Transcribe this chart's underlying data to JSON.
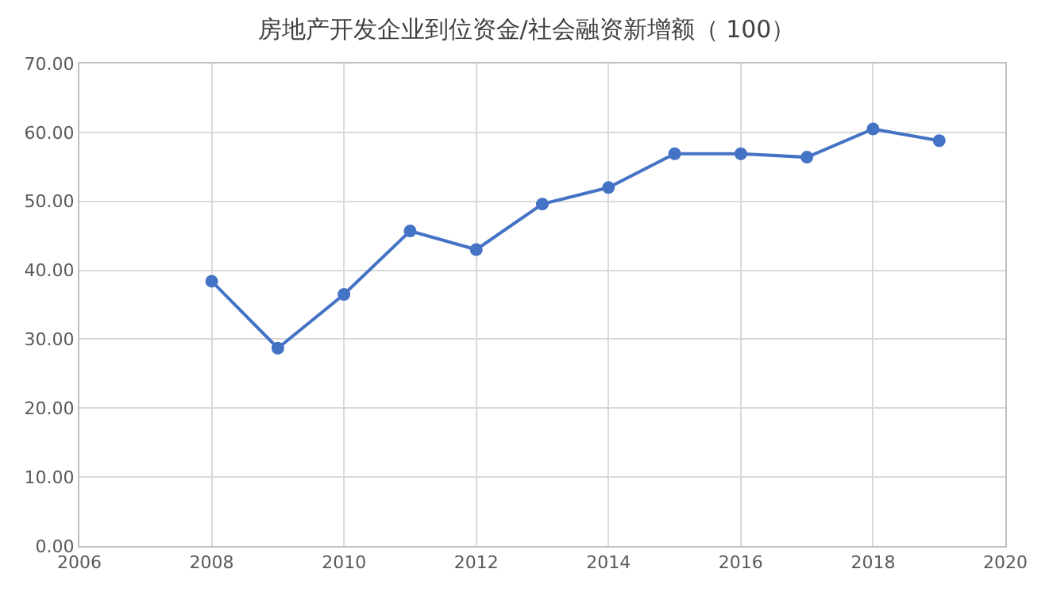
{
  "chart_data": {
    "type": "line",
    "title": "房地产开发企业到位资金/社会融资新增额（ 100）",
    "x": [
      2008,
      2009,
      2010,
      2011,
      2012,
      2013,
      2014,
      2015,
      2016,
      2017,
      2018,
      2019
    ],
    "series": [
      {
        "color": "#4472c4",
        "values": [
          38.4,
          28.7,
          36.5,
          45.7,
          43.0,
          49.6,
          52.0,
          56.9,
          56.9,
          56.4,
          60.5,
          58.8
        ]
      }
    ],
    "xlim": [
      2006,
      2020
    ],
    "xticks": [
      2006,
      2008,
      2010,
      2012,
      2014,
      2016,
      2018,
      2020
    ],
    "ylim": [
      0,
      70
    ],
    "yticks": [
      {
        "value": 0,
        "label": "0.00"
      },
      {
        "value": 10,
        "label": "10.00"
      },
      {
        "value": 20,
        "label": "20.00"
      },
      {
        "value": 30,
        "label": "30.00"
      },
      {
        "value": 40,
        "label": "40.00"
      },
      {
        "value": 50,
        "label": "50.00"
      },
      {
        "value": 60,
        "label": "60.00"
      },
      {
        "value": 70,
        "label": "70.00"
      }
    ],
    "grid": true,
    "marker": "circle",
    "line_style": "solid"
  }
}
